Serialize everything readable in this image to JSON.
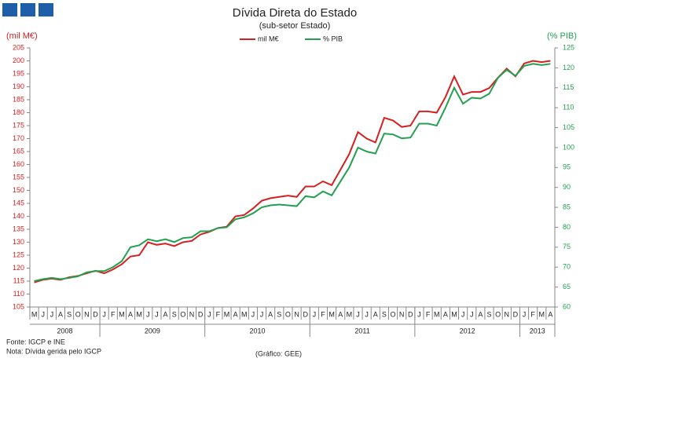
{
  "chart_data": {
    "type": "line",
    "title": "Dívida Direta do Estado",
    "subtitle": "(sub-setor  Estado)",
    "y_label": "(mil M€)",
    "y2_label": "(% PIB)",
    "source": "Fonte: IGCP e INE",
    "note": "Nota: Dívida gerida pelo IGCP",
    "credit": "(Gráfico: GEE)",
    "categories": [
      "M",
      "J",
      "J",
      "A",
      "S",
      "O",
      "N",
      "D",
      "J",
      "F",
      "M",
      "A",
      "M",
      "J",
      "J",
      "A",
      "S",
      "O",
      "N",
      "D",
      "J",
      "F",
      "M",
      "A",
      "M",
      "J",
      "J",
      "A",
      "S",
      "O",
      "N",
      "D",
      "J",
      "F",
      "M",
      "A",
      "M",
      "J",
      "J",
      "A",
      "S",
      "O",
      "N",
      "D",
      "J",
      "F",
      "M",
      "A",
      "M",
      "J",
      "J",
      "A",
      "S",
      "O",
      "N",
      "D",
      "J",
      "F",
      "M",
      "A"
    ],
    "years": [
      "2008",
      "2009",
      "2010",
      "2011",
      "2012",
      "2013"
    ],
    "series": [
      {
        "name": "mil M€",
        "color": "#d42020",
        "axis": "y",
        "values": [
          114.5,
          115.5,
          116,
          115.5,
          116.5,
          117,
          118,
          119,
          118,
          119.5,
          121.5,
          124.5,
          125,
          130,
          129,
          129.5,
          128.5,
          130,
          130.5,
          133,
          134,
          135.5,
          136,
          140,
          140.5,
          143,
          146,
          147,
          147.5,
          148,
          147.5,
          151.5,
          151.5,
          153.5,
          152,
          158,
          164,
          172.5,
          170,
          168.5,
          178,
          177,
          174.5,
          175,
          180.5,
          180.5,
          180,
          186,
          194,
          187,
          188,
          188,
          189.5,
          193.5,
          197,
          194,
          199,
          200,
          199.5,
          200
        ]
      },
      {
        "name": "% PIB",
        "color": "#22a050",
        "axis": "y2",
        "values": [
          66.5,
          67,
          67.3,
          67,
          67.3,
          67.7,
          68.7,
          69,
          69,
          70,
          71.5,
          75,
          75.5,
          77,
          76.5,
          77,
          76.3,
          77.3,
          77.5,
          79,
          79,
          79.8,
          80,
          82,
          82.5,
          83.5,
          85,
          85.5,
          85.7,
          85.5,
          85.3,
          87.8,
          87.5,
          89,
          88,
          91.5,
          95,
          100,
          99,
          98.5,
          103.5,
          103.3,
          102.3,
          102.5,
          106,
          106,
          105.5,
          110,
          115,
          111,
          112.5,
          112.3,
          113.5,
          117.5,
          119.5,
          118,
          120.5,
          121,
          120.7,
          121
        ]
      }
    ],
    "ylim": [
      105,
      205
    ],
    "yticks": [
      105,
      110,
      115,
      120,
      125,
      130,
      135,
      140,
      145,
      150,
      155,
      160,
      165,
      170,
      175,
      180,
      185,
      190,
      195,
      200,
      205
    ],
    "y2lim": [
      60,
      125
    ],
    "y2ticks": [
      60,
      65,
      70,
      75,
      80,
      85,
      90,
      95,
      100,
      105,
      110,
      115,
      120,
      125
    ]
  }
}
